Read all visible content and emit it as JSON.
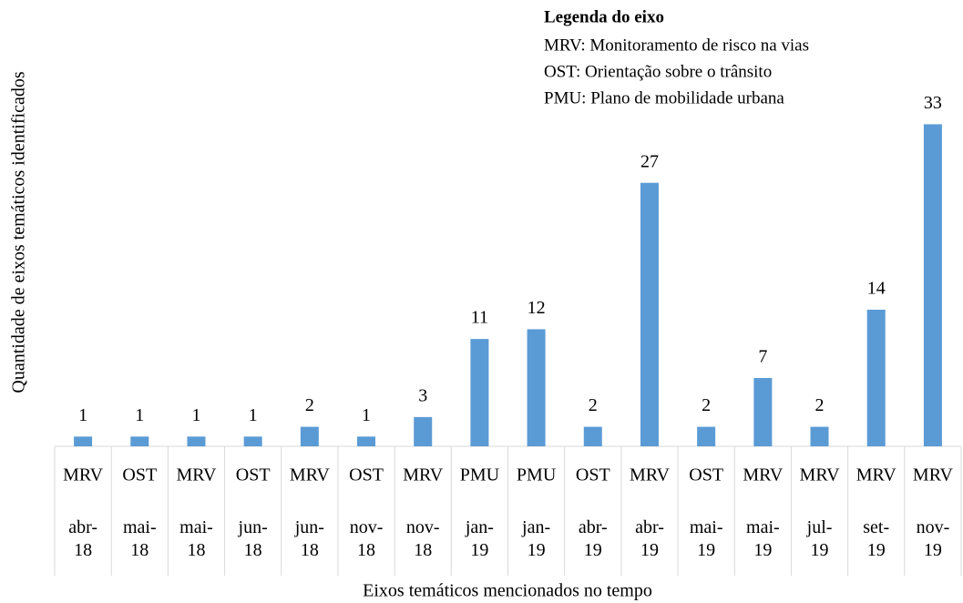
{
  "chart_data": {
    "type": "bar",
    "y_axis_label": "Quantidade de eixos temáticos identificados",
    "x_axis_label": "Eixos temáticos mencionados no tempo",
    "legend_box": {
      "title": "Legenda do eixo",
      "lines": [
        "MRV: Monitoramento de risco na vias",
        "OST: Orientação sobre o trânsito",
        "PMU: Plano de mobilidade urbana"
      ]
    },
    "categories": [
      "MRV",
      "OST",
      "MRV",
      "OST",
      "MRV",
      "OST",
      "MRV",
      "PMU",
      "PMU",
      "OST",
      "MRV",
      "OST",
      "MRV",
      "MRV",
      "MRV",
      "MRV"
    ],
    "periods": [
      "abr-18",
      "mai-18",
      "mai-18",
      "jun-18",
      "jun-18",
      "nov-18",
      "nov-18",
      "jan-19",
      "jan-19",
      "abr-19",
      "abr-19",
      "mai-19",
      "mai-19",
      "jul-19",
      "set-19",
      "nov-19"
    ],
    "values": [
      1,
      1,
      1,
      1,
      2,
      1,
      3,
      11,
      12,
      2,
      27,
      2,
      7,
      2,
      14,
      33
    ],
    "color": "#5b9bd5",
    "ylim": [
      0,
      35
    ]
  }
}
